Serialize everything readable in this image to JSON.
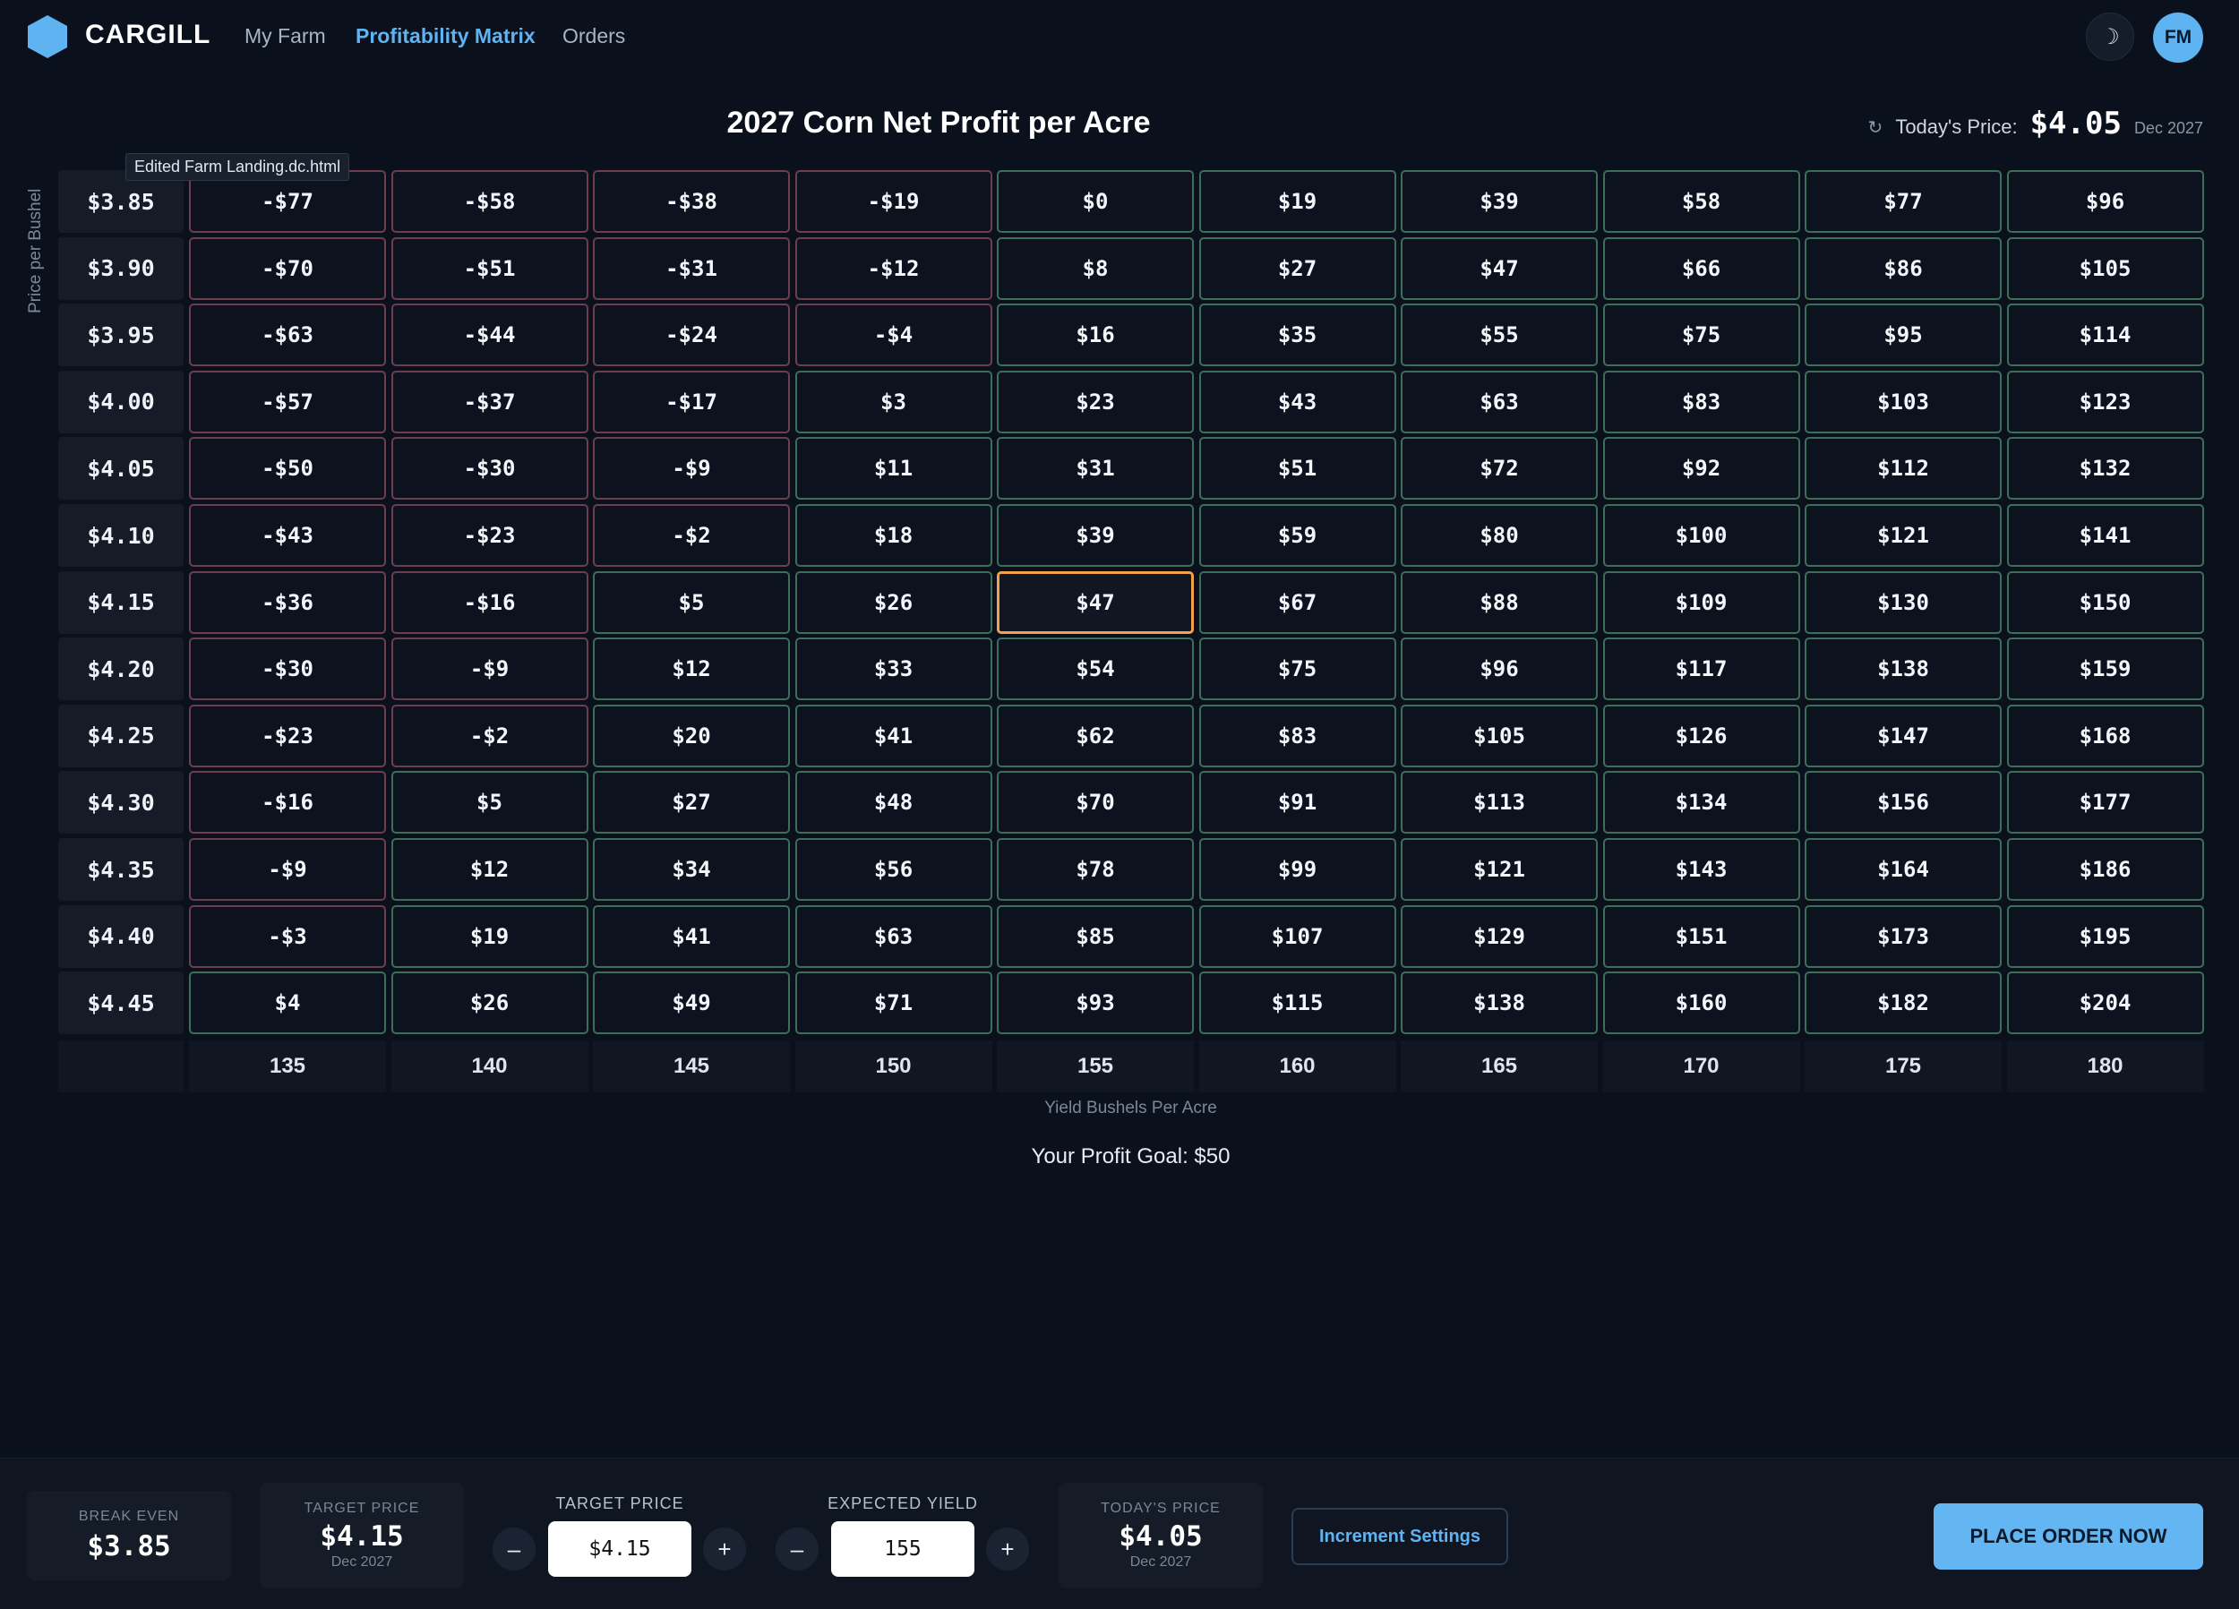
{
  "nav": {
    "brand": "CARGILL",
    "items": [
      {
        "label": "My Farm",
        "active": false
      },
      {
        "label": "Profitability Matrix",
        "active": true
      },
      {
        "label": "Orders",
        "active": false
      }
    ],
    "theme_icon": "moon-icon",
    "theme_glyph": "☽",
    "avatar_initials": "FM"
  },
  "header": {
    "title": "2027 Corn Net Profit per Acre",
    "refresh_icon": "refresh-icon",
    "refresh_glyph": "↻",
    "today_price_label": "Today's Price:",
    "today_price_value": "$4.05",
    "today_price_date": "Dec 2027"
  },
  "tooltip": "Edited Farm Landing.dc.html",
  "matrix": {
    "y_axis_label": "Price per Bushel",
    "x_axis_label": "Yield Bushels Per Acre",
    "selected": {
      "row": "$4.15",
      "col": "155"
    },
    "row_labels": [
      "$3.85",
      "$3.90",
      "$3.95",
      "$4.00",
      "$4.05",
      "$4.10",
      "$4.15",
      "$4.20",
      "$4.25",
      "$4.30",
      "$4.35",
      "$4.40",
      "$4.45"
    ],
    "col_labels": [
      "135",
      "140",
      "145",
      "150",
      "155",
      "160",
      "165",
      "170",
      "175",
      "180"
    ],
    "cells": [
      [
        "-$77",
        "-$58",
        "-$38",
        "-$19",
        "$0",
        "$19",
        "$39",
        "$58",
        "$77",
        "$96"
      ],
      [
        "-$70",
        "-$51",
        "-$31",
        "-$12",
        "$8",
        "$27",
        "$47",
        "$66",
        "$86",
        "$105"
      ],
      [
        "-$63",
        "-$44",
        "-$24",
        "-$4",
        "$16",
        "$35",
        "$55",
        "$75",
        "$95",
        "$114"
      ],
      [
        "-$57",
        "-$37",
        "-$17",
        "$3",
        "$23",
        "$43",
        "$63",
        "$83",
        "$103",
        "$123"
      ],
      [
        "-$50",
        "-$30",
        "-$9",
        "$11",
        "$31",
        "$51",
        "$72",
        "$92",
        "$112",
        "$132"
      ],
      [
        "-$43",
        "-$23",
        "-$2",
        "$18",
        "$39",
        "$59",
        "$80",
        "$100",
        "$121",
        "$141"
      ],
      [
        "-$36",
        "-$16",
        "$5",
        "$26",
        "$47",
        "$67",
        "$88",
        "$109",
        "$130",
        "$150"
      ],
      [
        "-$30",
        "-$9",
        "$12",
        "$33",
        "$54",
        "$75",
        "$96",
        "$117",
        "$138",
        "$159"
      ],
      [
        "-$23",
        "-$2",
        "$20",
        "$41",
        "$62",
        "$83",
        "$105",
        "$126",
        "$147",
        "$168"
      ],
      [
        "-$16",
        "$5",
        "$27",
        "$48",
        "$70",
        "$91",
        "$113",
        "$134",
        "$156",
        "$177"
      ],
      [
        "-$9",
        "$12",
        "$34",
        "$56",
        "$78",
        "$99",
        "$121",
        "$143",
        "$164",
        "$186"
      ],
      [
        "-$3",
        "$19",
        "$41",
        "$63",
        "$85",
        "$107",
        "$129",
        "$151",
        "$173",
        "$195"
      ],
      [
        "$4",
        "$26",
        "$49",
        "$71",
        "$93",
        "$115",
        "$138",
        "$160",
        "$182",
        "$204"
      ]
    ],
    "profit_goal": "Your Profit Goal: $50"
  },
  "colors": {
    "negative_border": "#6c3e4e",
    "positive_border": "#3d6e57",
    "selected_border": "#f3a24a",
    "accent": "#5fb3f0"
  },
  "bottom": {
    "break_even": {
      "label": "BREAK EVEN",
      "value": "$3.85"
    },
    "target_card": {
      "label": "TARGET PRICE",
      "value": "$4.15",
      "date": "Dec 2027"
    },
    "target_stepper": {
      "label": "TARGET PRICE",
      "value": "$4.15",
      "minus": "–",
      "plus": "+"
    },
    "yield_stepper": {
      "label": "EXPECTED YIELD",
      "value": "155",
      "minus": "–",
      "plus": "+"
    },
    "today_card": {
      "label": "TODAY'S PRICE",
      "value": "$4.05",
      "date": "Dec 2027"
    },
    "increment_button": "Increment Settings",
    "order_button": "PLACE ORDER NOW"
  }
}
